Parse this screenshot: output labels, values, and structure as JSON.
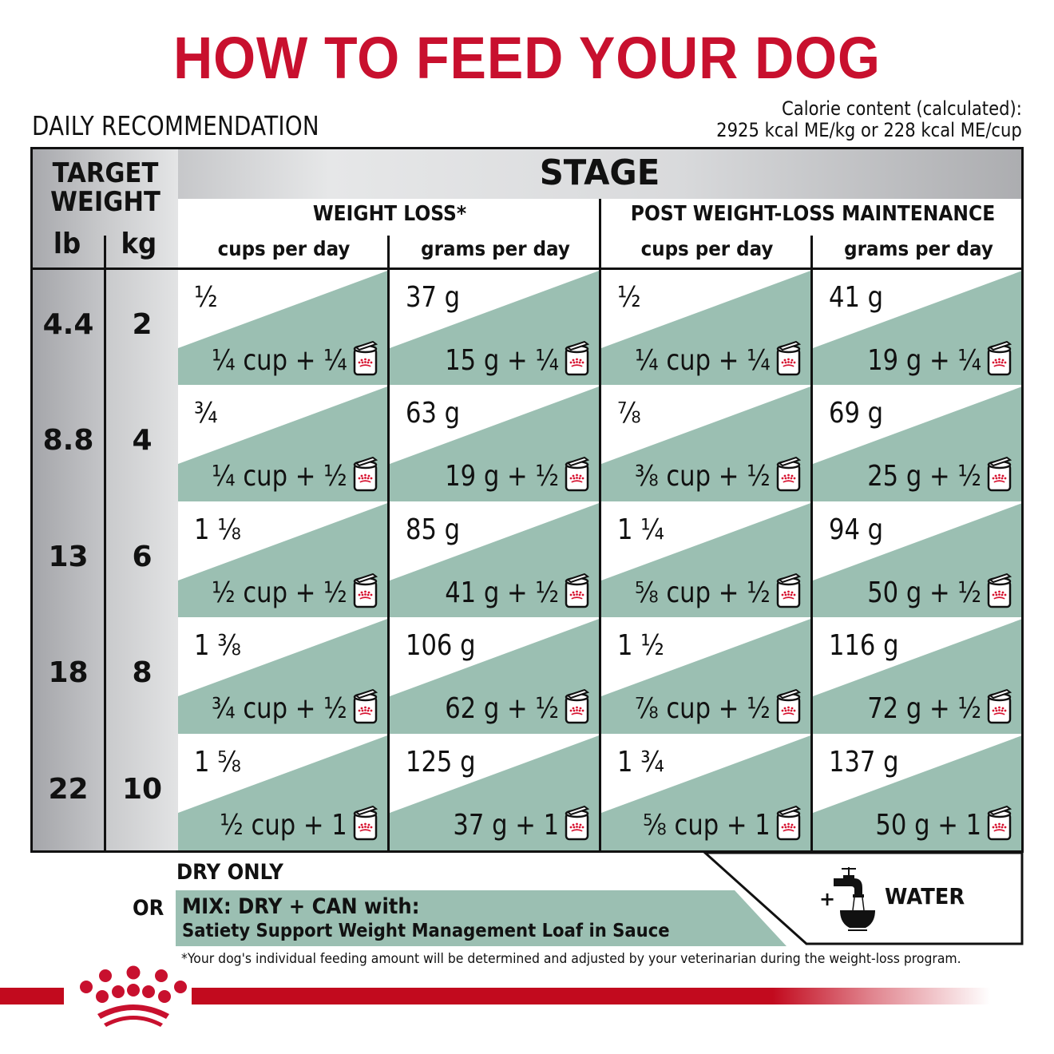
{
  "title": "HOW TO FEED YOUR DOG",
  "subtitle": "DAILY RECOMMENDATION",
  "calorie": {
    "line1": "Calorie content (calculated):",
    "line2": "2925 kcal ME/kg or 228 kcal ME/cup"
  },
  "table": {
    "target_weight_label_1": "TARGET",
    "target_weight_label_2": "WEIGHT",
    "unit_lb": "lb",
    "unit_kg": "kg",
    "stage_label": "STAGE",
    "groups": [
      {
        "label": "WEIGHT LOSS*",
        "columns": [
          "cups per day",
          "grams per day"
        ]
      },
      {
        "label": "POST WEIGHT-LOSS MAINTENANCE",
        "columns": [
          "cups per day",
          "grams per day"
        ]
      }
    ],
    "rows": [
      {
        "lb": "4.4",
        "kg": "2",
        "wl_cups": {
          "dry": "½",
          "mix": "¼ cup + ¼"
        },
        "wl_grams": {
          "dry": "37 g",
          "mix": "15 g + ¼"
        },
        "pm_cups": {
          "dry": "½",
          "mix": "¼ cup + ¼"
        },
        "pm_grams": {
          "dry": "41 g",
          "mix": "19 g + ¼"
        }
      },
      {
        "lb": "8.8",
        "kg": "4",
        "wl_cups": {
          "dry": "¾",
          "mix": "¼ cup + ½"
        },
        "wl_grams": {
          "dry": "63 g",
          "mix": "19 g + ½"
        },
        "pm_cups": {
          "dry": "⅞",
          "mix": "⅜ cup + ½"
        },
        "pm_grams": {
          "dry": "69 g",
          "mix": "25 g + ½"
        }
      },
      {
        "lb": "13",
        "kg": "6",
        "wl_cups": {
          "dry": "1 ⅛",
          "mix": "½ cup + ½"
        },
        "wl_grams": {
          "dry": "85 g",
          "mix": "41 g + ½"
        },
        "pm_cups": {
          "dry": "1 ¼",
          "mix": "⅝ cup + ½"
        },
        "pm_grams": {
          "dry": "94 g",
          "mix": "50 g + ½"
        }
      },
      {
        "lb": "18",
        "kg": "8",
        "wl_cups": {
          "dry": "1 ⅜",
          "mix": "¾ cup + ½"
        },
        "wl_grams": {
          "dry": "106 g",
          "mix": "62 g + ½"
        },
        "pm_cups": {
          "dry": "1 ½",
          "mix": "⅞ cup + ½"
        },
        "pm_grams": {
          "dry": "116 g",
          "mix": "72 g + ½"
        }
      },
      {
        "lb": "22",
        "kg": "10",
        "wl_cups": {
          "dry": "1 ⅝",
          "mix": "½ cup + 1"
        },
        "wl_grams": {
          "dry": "125 g",
          "mix": "37 g + 1"
        },
        "pm_cups": {
          "dry": "1 ¾",
          "mix": "⅝ cup + 1"
        },
        "pm_grams": {
          "dry": "137 g",
          "mix": "50 g + 1"
        }
      }
    ]
  },
  "legend": {
    "dry_only": "DRY ONLY",
    "or": "OR",
    "mix_line1": "MIX: DRY + CAN with:",
    "mix_line2": "Satiety Support Weight Management Loaf in Sauce",
    "water_plus": "+",
    "water_label": "WATER",
    "icons": {
      "can": "can-icon",
      "tap": "water-tap-icon",
      "logo": "crown-logo"
    }
  },
  "footnote": "*Your dog's individual feeding amount will be determined and adjusted by your veterinarian during the weight-loss program.",
  "colors": {
    "brand_red": "#c8102e",
    "mix_green": "#9bbfb2",
    "gray_dark": "#a8a9ad",
    "gray_light": "#e6e7e8"
  }
}
